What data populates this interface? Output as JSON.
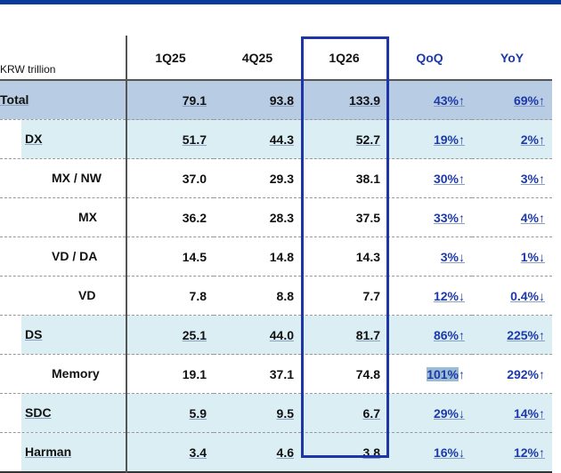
{
  "unit_label": "KRW trillion",
  "columns": [
    "1Q25",
    "4Q25",
    "1Q26",
    "QoQ",
    "YoY"
  ],
  "rows": [
    {
      "label": "Total",
      "v": [
        "79.1",
        "93.8",
        "133.9"
      ],
      "qoq": "43%↑",
      "yoy": "69%↑"
    },
    {
      "label": "DX",
      "v": [
        "51.7",
        "44.3",
        "52.7"
      ],
      "qoq": "19%↑",
      "yoy": "2%↑"
    },
    {
      "label": "MX / NW",
      "v": [
        "37.0",
        "29.3",
        "38.1"
      ],
      "qoq": "30%↑",
      "yoy": "3%↑"
    },
    {
      "label": "MX",
      "v": [
        "36.2",
        "28.3",
        "37.5"
      ],
      "qoq": "33%↑",
      "yoy": "4%↑"
    },
    {
      "label": "VD / DA",
      "v": [
        "14.5",
        "14.8",
        "14.3"
      ],
      "qoq": "3%↓",
      "yoy": "1%↓"
    },
    {
      "label": "VD",
      "v": [
        "7.8",
        "8.8",
        "7.7"
      ],
      "qoq": "12%↓",
      "yoy": "0.4%↓"
    },
    {
      "label": "DS",
      "v": [
        "25.1",
        "44.0",
        "81.7"
      ],
      "qoq": "86%↑",
      "yoy": "225%↑"
    },
    {
      "label": "Memory",
      "v": [
        "19.1",
        "37.1",
        "74.8"
      ],
      "qoq_highlighted": "101%",
      "qoq_arrow": "↑",
      "yoy": "292%↑"
    },
    {
      "label": "SDC",
      "v": [
        "5.9",
        "9.5",
        "6.7"
      ],
      "qoq": "29%↓",
      "yoy": "14%↑"
    },
    {
      "label": "Harman",
      "v": [
        "3.4",
        "4.6",
        "3.8"
      ],
      "qoq": "16%↓",
      "yoy": "12%↑"
    }
  ]
}
